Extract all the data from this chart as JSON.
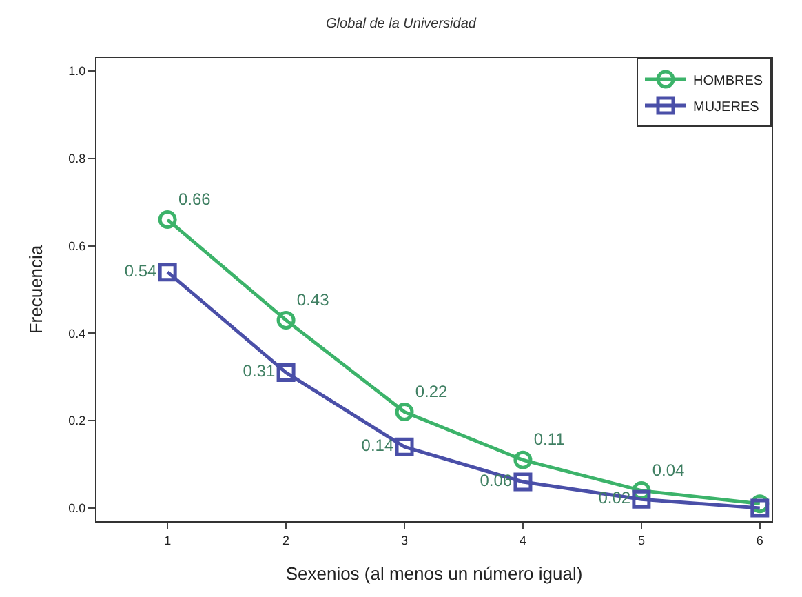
{
  "chart_data": {
    "type": "line",
    "title": "Global de la Universidad",
    "xlabel": "Sexenios (al menos un número igual)",
    "ylabel": "Frecuencia",
    "x": [
      1,
      2,
      3,
      4,
      5,
      6
    ],
    "series": [
      {
        "name": "HOMBRES",
        "color": "#3cb36a",
        "marker": "circle",
        "values": [
          0.66,
          0.43,
          0.22,
          0.11,
          0.04,
          0.01
        ],
        "value_labels": [
          "0.66",
          "0.43",
          "0.22",
          "0.11",
          "0.04",
          null
        ]
      },
      {
        "name": "MUJERES",
        "color": "#4a4fa8",
        "marker": "square",
        "values": [
          0.54,
          0.31,
          0.14,
          0.06,
          0.02,
          0.0
        ],
        "value_labels": [
          "0.54",
          "0.31",
          "0.14",
          "0.06",
          "0.02",
          null
        ]
      }
    ],
    "xlim": [
      0.4,
      6.1
    ],
    "xticks": [
      1,
      2,
      3,
      4,
      5,
      6
    ],
    "ylim": [
      -0.03,
      1.03
    ],
    "yticks": [
      {
        "value": 0,
        "label": "0.0"
      },
      0.2,
      0.4,
      0.6,
      0.8,
      {
        "value": 1,
        "label": "1.0"
      }
    ],
    "legend": "top right",
    "line_style": "solid"
  }
}
